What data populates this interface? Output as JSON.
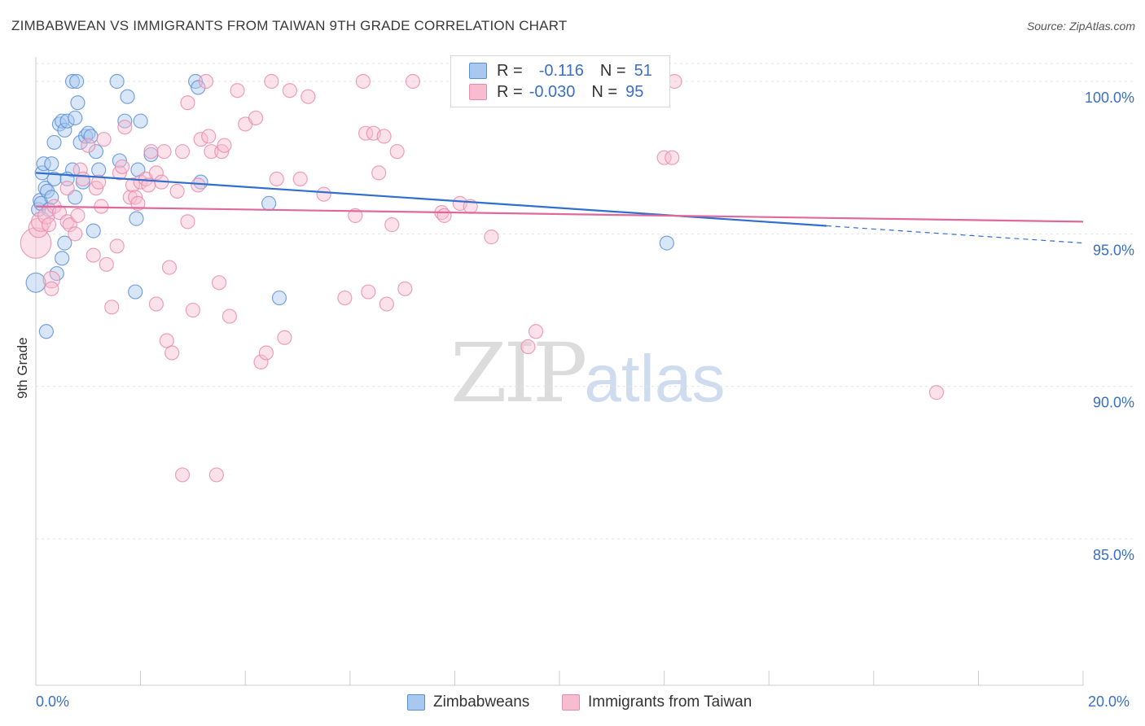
{
  "title": "ZIMBABWEAN VS IMMIGRANTS FROM TAIWAN 9TH GRADE CORRELATION CHART",
  "source": "Source: ZipAtlas.com",
  "watermark": {
    "zip": "ZIP",
    "atlas": "atlas"
  },
  "legend": {
    "rows": [
      {
        "r_key": "R =",
        "r_val": "-0.116",
        "n_key": "N =",
        "n_val": "51"
      },
      {
        "r_key": "R =",
        "r_val": "-0.030",
        "n_key": "N =",
        "n_val": "95"
      }
    ]
  },
  "x_axis": {
    "min_label": "0.0%",
    "max_label": "20.0%"
  },
  "y_axis": {
    "label": "9th Grade"
  },
  "colors": {
    "blue_fill": "#a8c8f0",
    "blue_stroke": "#5a8fd6",
    "blue_line": "#2f6fcf",
    "pink_fill": "#f7bcd0",
    "pink_stroke": "#e88aaa",
    "pink_line": "#e0689a",
    "grid": "#e2e2e2",
    "tick_label": "#3a6fc4"
  },
  "chart_data": {
    "type": "scatter",
    "title": "ZIMBABWEAN VS IMMIGRANTS FROM TAIWAN 9TH GRADE CORRELATION CHART",
    "xlabel": "",
    "ylabel": "9th Grade",
    "xlim": [
      0,
      20
    ],
    "ylim": [
      80.2,
      100.8
    ],
    "y_ticks": [
      {
        "value": 100,
        "label": "100.0%"
      },
      {
        "value": 95,
        "label": "95.0%"
      },
      {
        "value": 90,
        "label": "90.0%"
      },
      {
        "value": 85,
        "label": "85.0%"
      }
    ],
    "x_ticks": [
      0,
      2,
      4,
      6,
      8,
      10,
      12,
      14,
      16,
      18,
      20
    ],
    "grid": true,
    "legend_position": "top-center",
    "series": [
      {
        "name": "Zimbabweans",
        "color": "blue",
        "r": -0.116,
        "n": 51,
        "trend": {
          "x0": 0.0,
          "y0": 97.0,
          "x_solid_end": 15.1,
          "x1": 20.0,
          "y1": 94.7
        },
        "points": [
          [
            0.0,
            93.4,
            14
          ],
          [
            0.05,
            95.8,
            10
          ],
          [
            0.08,
            96.1,
            10
          ],
          [
            0.1,
            96.0,
            10
          ],
          [
            0.12,
            97.0,
            10
          ],
          [
            0.15,
            97.3,
            10
          ],
          [
            0.18,
            96.5,
            10
          ],
          [
            0.2,
            91.8,
            10
          ],
          [
            0.22,
            96.4,
            10
          ],
          [
            0.25,
            95.8,
            10
          ],
          [
            0.3,
            96.2,
            10
          ],
          [
            0.35,
            98.0,
            10
          ],
          [
            0.35,
            96.8,
            10
          ],
          [
            0.4,
            93.7,
            10
          ],
          [
            0.45,
            98.6,
            10
          ],
          [
            0.5,
            98.7,
            10
          ],
          [
            0.5,
            94.2,
            10
          ],
          [
            0.55,
            98.4,
            10
          ],
          [
            0.55,
            94.7,
            10
          ],
          [
            0.6,
            98.7,
            10
          ],
          [
            0.7,
            100.0,
            10
          ],
          [
            0.7,
            97.1,
            10
          ],
          [
            0.75,
            98.8,
            10
          ],
          [
            0.75,
            96.2,
            10
          ],
          [
            0.78,
            100.0,
            10
          ],
          [
            0.8,
            99.3,
            10
          ],
          [
            0.85,
            98.0,
            10
          ],
          [
            0.9,
            96.7,
            10
          ],
          [
            0.95,
            98.2,
            10
          ],
          [
            1.0,
            98.3,
            10
          ],
          [
            1.05,
            98.2,
            10
          ],
          [
            1.1,
            95.1,
            10
          ],
          [
            1.15,
            97.7,
            10
          ],
          [
            1.2,
            97.1,
            10
          ],
          [
            1.55,
            100.0,
            10
          ],
          [
            1.6,
            97.4,
            10
          ],
          [
            1.7,
            98.7,
            10
          ],
          [
            1.75,
            99.5,
            10
          ],
          [
            1.9,
            93.1,
            10
          ],
          [
            1.92,
            95.5,
            10
          ],
          [
            1.95,
            97.1,
            10
          ],
          [
            2.0,
            98.7,
            10
          ],
          [
            2.2,
            97.6,
            10
          ],
          [
            3.05,
            100.0,
            10
          ],
          [
            3.1,
            99.8,
            10
          ],
          [
            3.15,
            96.7,
            10
          ],
          [
            4.45,
            96.0,
            10
          ],
          [
            4.65,
            92.9,
            10
          ],
          [
            12.05,
            94.7,
            10
          ],
          [
            0.3,
            97.3,
            10
          ],
          [
            0.6,
            96.8,
            10
          ]
        ]
      },
      {
        "name": "Immigrants from Taiwan",
        "color": "pink",
        "r": -0.03,
        "n": 95,
        "trend": {
          "x0": 0.0,
          "y0": 95.9,
          "x1": 20.0,
          "y1": 95.4
        },
        "points": [
          [
            0.0,
            94.7,
            22
          ],
          [
            0.05,
            95.2,
            14
          ],
          [
            0.1,
            95.4,
            14
          ],
          [
            0.2,
            95.6,
            12
          ],
          [
            0.25,
            95.3,
            10
          ],
          [
            0.3,
            93.5,
            12
          ],
          [
            0.3,
            93.2,
            10
          ],
          [
            0.35,
            95.9,
            10
          ],
          [
            0.45,
            95.7,
            10
          ],
          [
            0.6,
            95.4,
            10
          ],
          [
            0.6,
            96.5,
            10
          ],
          [
            0.65,
            95.3,
            10
          ],
          [
            0.75,
            95.0,
            10
          ],
          [
            0.8,
            95.6,
            10
          ],
          [
            0.85,
            97.1,
            10
          ],
          [
            0.9,
            96.8,
            10
          ],
          [
            1.0,
            97.9,
            10
          ],
          [
            1.1,
            94.3,
            10
          ],
          [
            1.15,
            96.5,
            10
          ],
          [
            1.2,
            96.7,
            10
          ],
          [
            1.25,
            95.9,
            10
          ],
          [
            1.3,
            98.1,
            10
          ],
          [
            1.35,
            94.0,
            10
          ],
          [
            1.45,
            92.6,
            10
          ],
          [
            1.55,
            94.6,
            10
          ],
          [
            1.6,
            97.0,
            10
          ],
          [
            1.65,
            97.2,
            10
          ],
          [
            1.7,
            98.5,
            10
          ],
          [
            1.8,
            96.2,
            10
          ],
          [
            1.85,
            96.6,
            10
          ],
          [
            1.9,
            96.2,
            10
          ],
          [
            1.95,
            96.0,
            10
          ],
          [
            2.0,
            96.7,
            10
          ],
          [
            2.1,
            96.8,
            10
          ],
          [
            2.15,
            96.6,
            10
          ],
          [
            2.2,
            97.7,
            10
          ],
          [
            2.3,
            92.7,
            10
          ],
          [
            2.3,
            97.0,
            10
          ],
          [
            2.4,
            96.7,
            10
          ],
          [
            2.45,
            97.7,
            10
          ],
          [
            2.5,
            91.5,
            10
          ],
          [
            2.55,
            93.9,
            10
          ],
          [
            2.6,
            91.1,
            10
          ],
          [
            2.7,
            96.4,
            10
          ],
          [
            2.8,
            97.7,
            10
          ],
          [
            2.8,
            87.1,
            10
          ],
          [
            2.9,
            99.3,
            10
          ],
          [
            2.9,
            95.4,
            10
          ],
          [
            3.0,
            92.5,
            10
          ],
          [
            3.1,
            96.6,
            10
          ],
          [
            3.15,
            98.1,
            10
          ],
          [
            3.25,
            100.0,
            10
          ],
          [
            3.3,
            98.2,
            10
          ],
          [
            3.35,
            97.7,
            10
          ],
          [
            3.45,
            87.1,
            10
          ],
          [
            3.5,
            93.4,
            10
          ],
          [
            3.55,
            97.7,
            10
          ],
          [
            3.6,
            97.9,
            10
          ],
          [
            3.7,
            92.3,
            10
          ],
          [
            3.85,
            99.7,
            10
          ],
          [
            4.0,
            98.6,
            10
          ],
          [
            4.2,
            98.8,
            10
          ],
          [
            4.3,
            90.8,
            10
          ],
          [
            4.4,
            91.1,
            10
          ],
          [
            4.5,
            100.0,
            10
          ],
          [
            4.6,
            96.8,
            10
          ],
          [
            4.75,
            91.6,
            10
          ],
          [
            4.85,
            99.7,
            10
          ],
          [
            5.05,
            96.8,
            10
          ],
          [
            5.2,
            99.5,
            10
          ],
          [
            5.5,
            96.3,
            10
          ],
          [
            5.9,
            92.9,
            10
          ],
          [
            6.1,
            95.6,
            10
          ],
          [
            6.25,
            100.0,
            10
          ],
          [
            6.3,
            98.3,
            10
          ],
          [
            6.35,
            93.1,
            10
          ],
          [
            6.45,
            98.3,
            10
          ],
          [
            6.55,
            97.0,
            10
          ],
          [
            6.65,
            98.2,
            10
          ],
          [
            6.7,
            92.7,
            10
          ],
          [
            6.8,
            95.3,
            10
          ],
          [
            6.9,
            97.7,
            10
          ],
          [
            7.05,
            93.2,
            10
          ],
          [
            7.2,
            100.0,
            10
          ],
          [
            7.75,
            95.7,
            10
          ],
          [
            7.8,
            95.6,
            10
          ],
          [
            8.1,
            96.0,
            10
          ],
          [
            8.3,
            95.9,
            10
          ],
          [
            8.7,
            94.9,
            10
          ],
          [
            9.4,
            91.3,
            10
          ],
          [
            9.55,
            91.8,
            10
          ],
          [
            12.0,
            97.5,
            10
          ],
          [
            12.15,
            97.5,
            10
          ],
          [
            12.2,
            100.0,
            10
          ],
          [
            17.2,
            89.8,
            10
          ]
        ]
      }
    ]
  },
  "bottom_legend": [
    {
      "label": "Zimbabweans",
      "color": "blue"
    },
    {
      "label": "Immigrants from Taiwan",
      "color": "pink"
    }
  ]
}
